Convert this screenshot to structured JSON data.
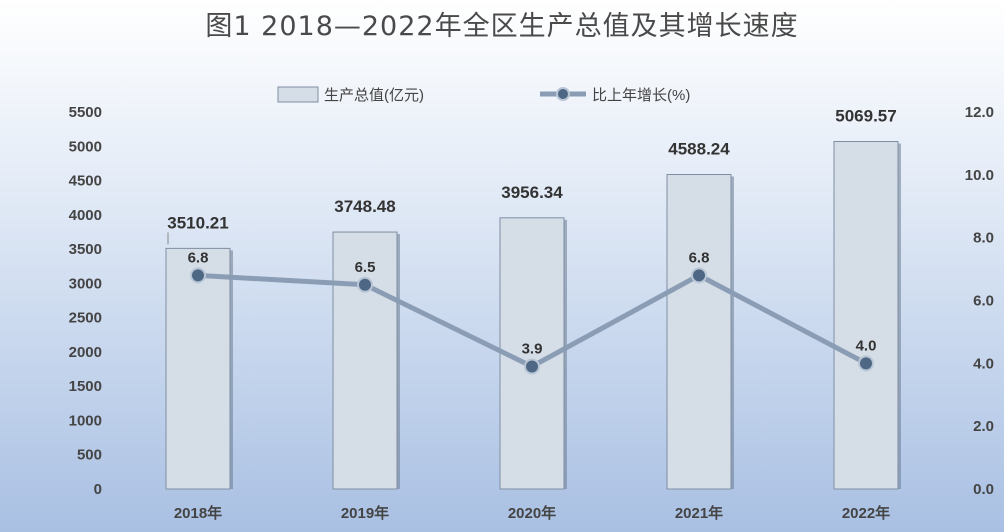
{
  "chart_data": {
    "type": "bar",
    "title": "图1  2018—2022年全区生产总值及其增长速度",
    "categories": [
      "2018年",
      "2019年",
      "2020年",
      "2021年",
      "2022年"
    ],
    "series": [
      {
        "name": "生产总值(亿元)",
        "type": "bar",
        "axis": "left",
        "values": [
          3510.21,
          3748.48,
          3956.34,
          4588.24,
          5069.57
        ],
        "labels": [
          "3510.21",
          "3748.48",
          "3956.34",
          "4588.24",
          "5069.57"
        ]
      },
      {
        "name": "比上年增长(%)",
        "type": "line",
        "axis": "right",
        "values": [
          6.8,
          6.5,
          3.9,
          6.8,
          4.0
        ],
        "labels": [
          "6.8",
          "6.5",
          "3.9",
          "6.8",
          "4.0"
        ]
      }
    ],
    "y_left": {
      "min": 0,
      "max": 5500,
      "ticks": [
        "0",
        "500",
        "1000",
        "1500",
        "2000",
        "2500",
        "3000",
        "3500",
        "4000",
        "4500",
        "5000",
        "5500"
      ]
    },
    "y_right": {
      "min": 0,
      "max": 12,
      "ticks": [
        "0.0",
        "2.0",
        "4.0",
        "6.0",
        "8.0",
        "10.0",
        "12.0"
      ]
    },
    "legend": "top-center",
    "grid": false,
    "colors": {
      "bar_fill": "#d5dde7",
      "bar_stroke": "#7f8fa3",
      "line": "#8a9db5",
      "marker": "#4d6784"
    }
  }
}
